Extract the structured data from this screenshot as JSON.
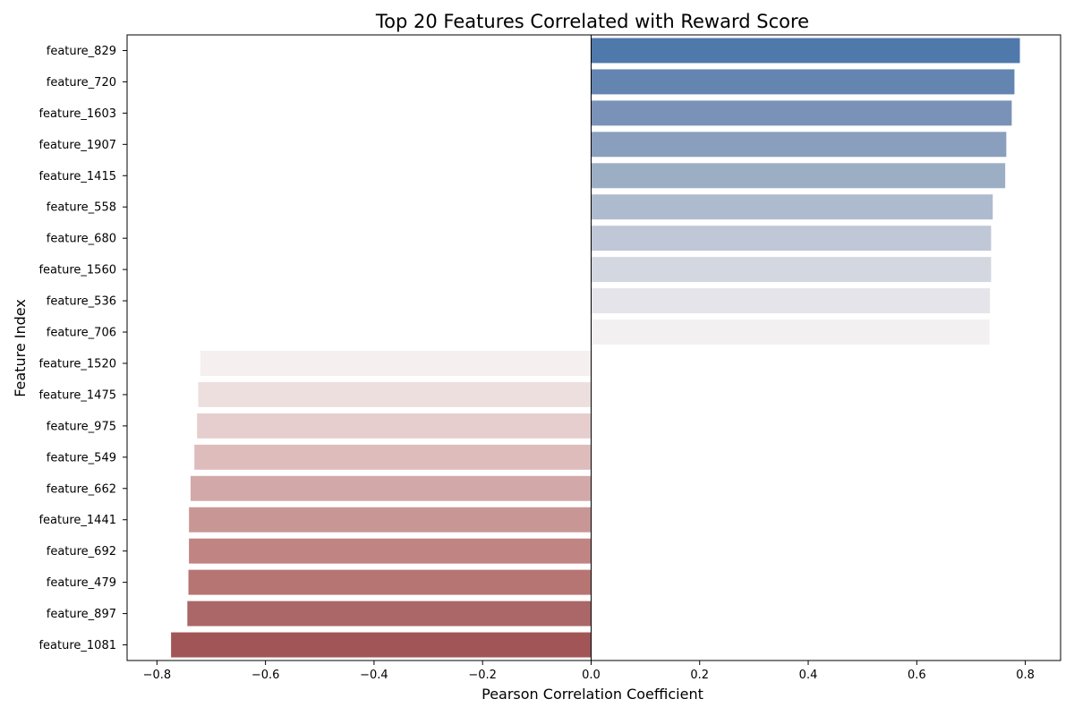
{
  "chart_data": {
    "type": "bar",
    "orientation": "horizontal",
    "title": "Top 20 Features Correlated with Reward Score",
    "xlabel": "Pearson Correlation Coefficient",
    "ylabel": "Feature Index",
    "xlim": [
      -0.855,
      0.865
    ],
    "xticks": [
      -0.8,
      -0.6,
      -0.4,
      -0.2,
      0.0,
      0.2,
      0.4,
      0.6,
      0.8
    ],
    "xtick_labels": [
      "−0.8",
      "−0.6",
      "−0.4",
      "−0.2",
      "0.0",
      "0.2",
      "0.4",
      "0.6",
      "0.8"
    ],
    "grid": false,
    "reference_line_x": 0,
    "categories": [
      "feature_829",
      "feature_720",
      "feature_1603",
      "feature_1907",
      "feature_1415",
      "feature_558",
      "feature_680",
      "feature_1560",
      "feature_536",
      "feature_706",
      "feature_1520",
      "feature_1475",
      "feature_975",
      "feature_549",
      "feature_662",
      "feature_1441",
      "feature_692",
      "feature_479",
      "feature_897",
      "feature_1081"
    ],
    "values": [
      0.79,
      0.78,
      0.775,
      0.765,
      0.763,
      0.74,
      0.737,
      0.737,
      0.735,
      0.734,
      -0.72,
      -0.724,
      -0.726,
      -0.731,
      -0.738,
      -0.741,
      -0.741,
      -0.742,
      -0.744,
      -0.774
    ],
    "colors": [
      "#4f78ab",
      "#6585b1",
      "#7a92b7",
      "#8a9ebd",
      "#9caec4",
      "#aebace",
      "#c0c7d6",
      "#d3d7e0",
      "#e4e4ea",
      "#f3f0f1",
      "#f5efef",
      "#eedfdf",
      "#e5cecd",
      "#ddbcbb",
      "#d2a9a8",
      "#c89795",
      "#c08482",
      "#b67573",
      "#ab6667",
      "#a25557"
    ]
  }
}
